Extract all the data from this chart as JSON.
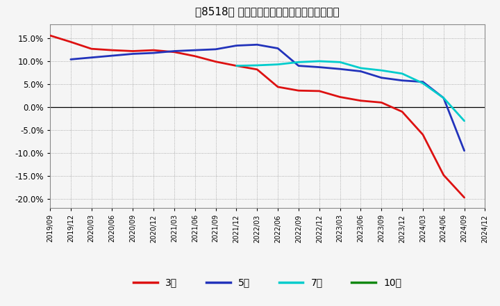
{
  "title": "［8518］ 当期純利益マージンの平均値の推移",
  "background_color": "#f5f5f5",
  "plot_background": "#f5f5f5",
  "grid_color": "#999999",
  "ylim": [
    -0.22,
    0.18
  ],
  "yticks": [
    -0.2,
    -0.15,
    -0.1,
    -0.05,
    0.0,
    0.05,
    0.1,
    0.15
  ],
  "series": {
    "3年": {
      "color": "#dd1111",
      "data_x": [
        "2019-09",
        "2019-12",
        "2020-03",
        "2020-06",
        "2020-09",
        "2020-12",
        "2021-03",
        "2021-06",
        "2021-09",
        "2021-12",
        "2022-03",
        "2022-06",
        "2022-09",
        "2022-12",
        "2023-03",
        "2023-06",
        "2023-09",
        "2023-12",
        "2024-03",
        "2024-06",
        "2024-09"
      ],
      "data_y": [
        0.156,
        0.142,
        0.127,
        0.124,
        0.122,
        0.124,
        0.12,
        0.111,
        0.099,
        0.09,
        0.082,
        0.044,
        0.036,
        0.035,
        0.022,
        0.014,
        0.01,
        -0.01,
        -0.06,
        -0.148,
        -0.197
      ]
    },
    "5年": {
      "color": "#2233bb",
      "data_x": [
        "2019-12",
        "2020-03",
        "2020-06",
        "2020-09",
        "2020-12",
        "2021-03",
        "2021-06",
        "2021-09",
        "2021-12",
        "2022-03",
        "2022-06",
        "2022-09",
        "2022-12",
        "2023-03",
        "2023-06",
        "2023-09",
        "2023-12",
        "2024-03",
        "2024-06",
        "2024-09"
      ],
      "data_y": [
        0.104,
        0.108,
        0.112,
        0.116,
        0.118,
        0.122,
        0.124,
        0.126,
        0.134,
        0.136,
        0.128,
        0.09,
        0.087,
        0.083,
        0.078,
        0.064,
        0.058,
        0.055,
        0.02,
        -0.095
      ]
    },
    "7年": {
      "color": "#00cccc",
      "data_x": [
        "2021-12",
        "2022-03",
        "2022-06",
        "2022-09",
        "2022-12",
        "2023-03",
        "2023-06",
        "2023-09",
        "2023-12",
        "2024-03",
        "2024-06",
        "2024-09"
      ],
      "data_y": [
        0.09,
        0.091,
        0.093,
        0.098,
        0.1,
        0.098,
        0.085,
        0.08,
        0.073,
        0.052,
        0.02,
        -0.03
      ]
    },
    "10年": {
      "color": "#118811",
      "data_x": [],
      "data_y": []
    }
  },
  "legend_entries": [
    "3年",
    "5年",
    "7年",
    "10年"
  ],
  "legend_colors": [
    "#dd1111",
    "#2233bb",
    "#00cccc",
    "#118811"
  ],
  "xtick_labels": [
    "2019/09",
    "2019/12",
    "2020/03",
    "2020/06",
    "2020/09",
    "2020/12",
    "2021/03",
    "2021/06",
    "2021/09",
    "2021/12",
    "2022/03",
    "2022/06",
    "2022/09",
    "2022/12",
    "2023/03",
    "2023/06",
    "2023/09",
    "2023/12",
    "2024/03",
    "2024/06",
    "2024/09",
    "2024/12"
  ]
}
